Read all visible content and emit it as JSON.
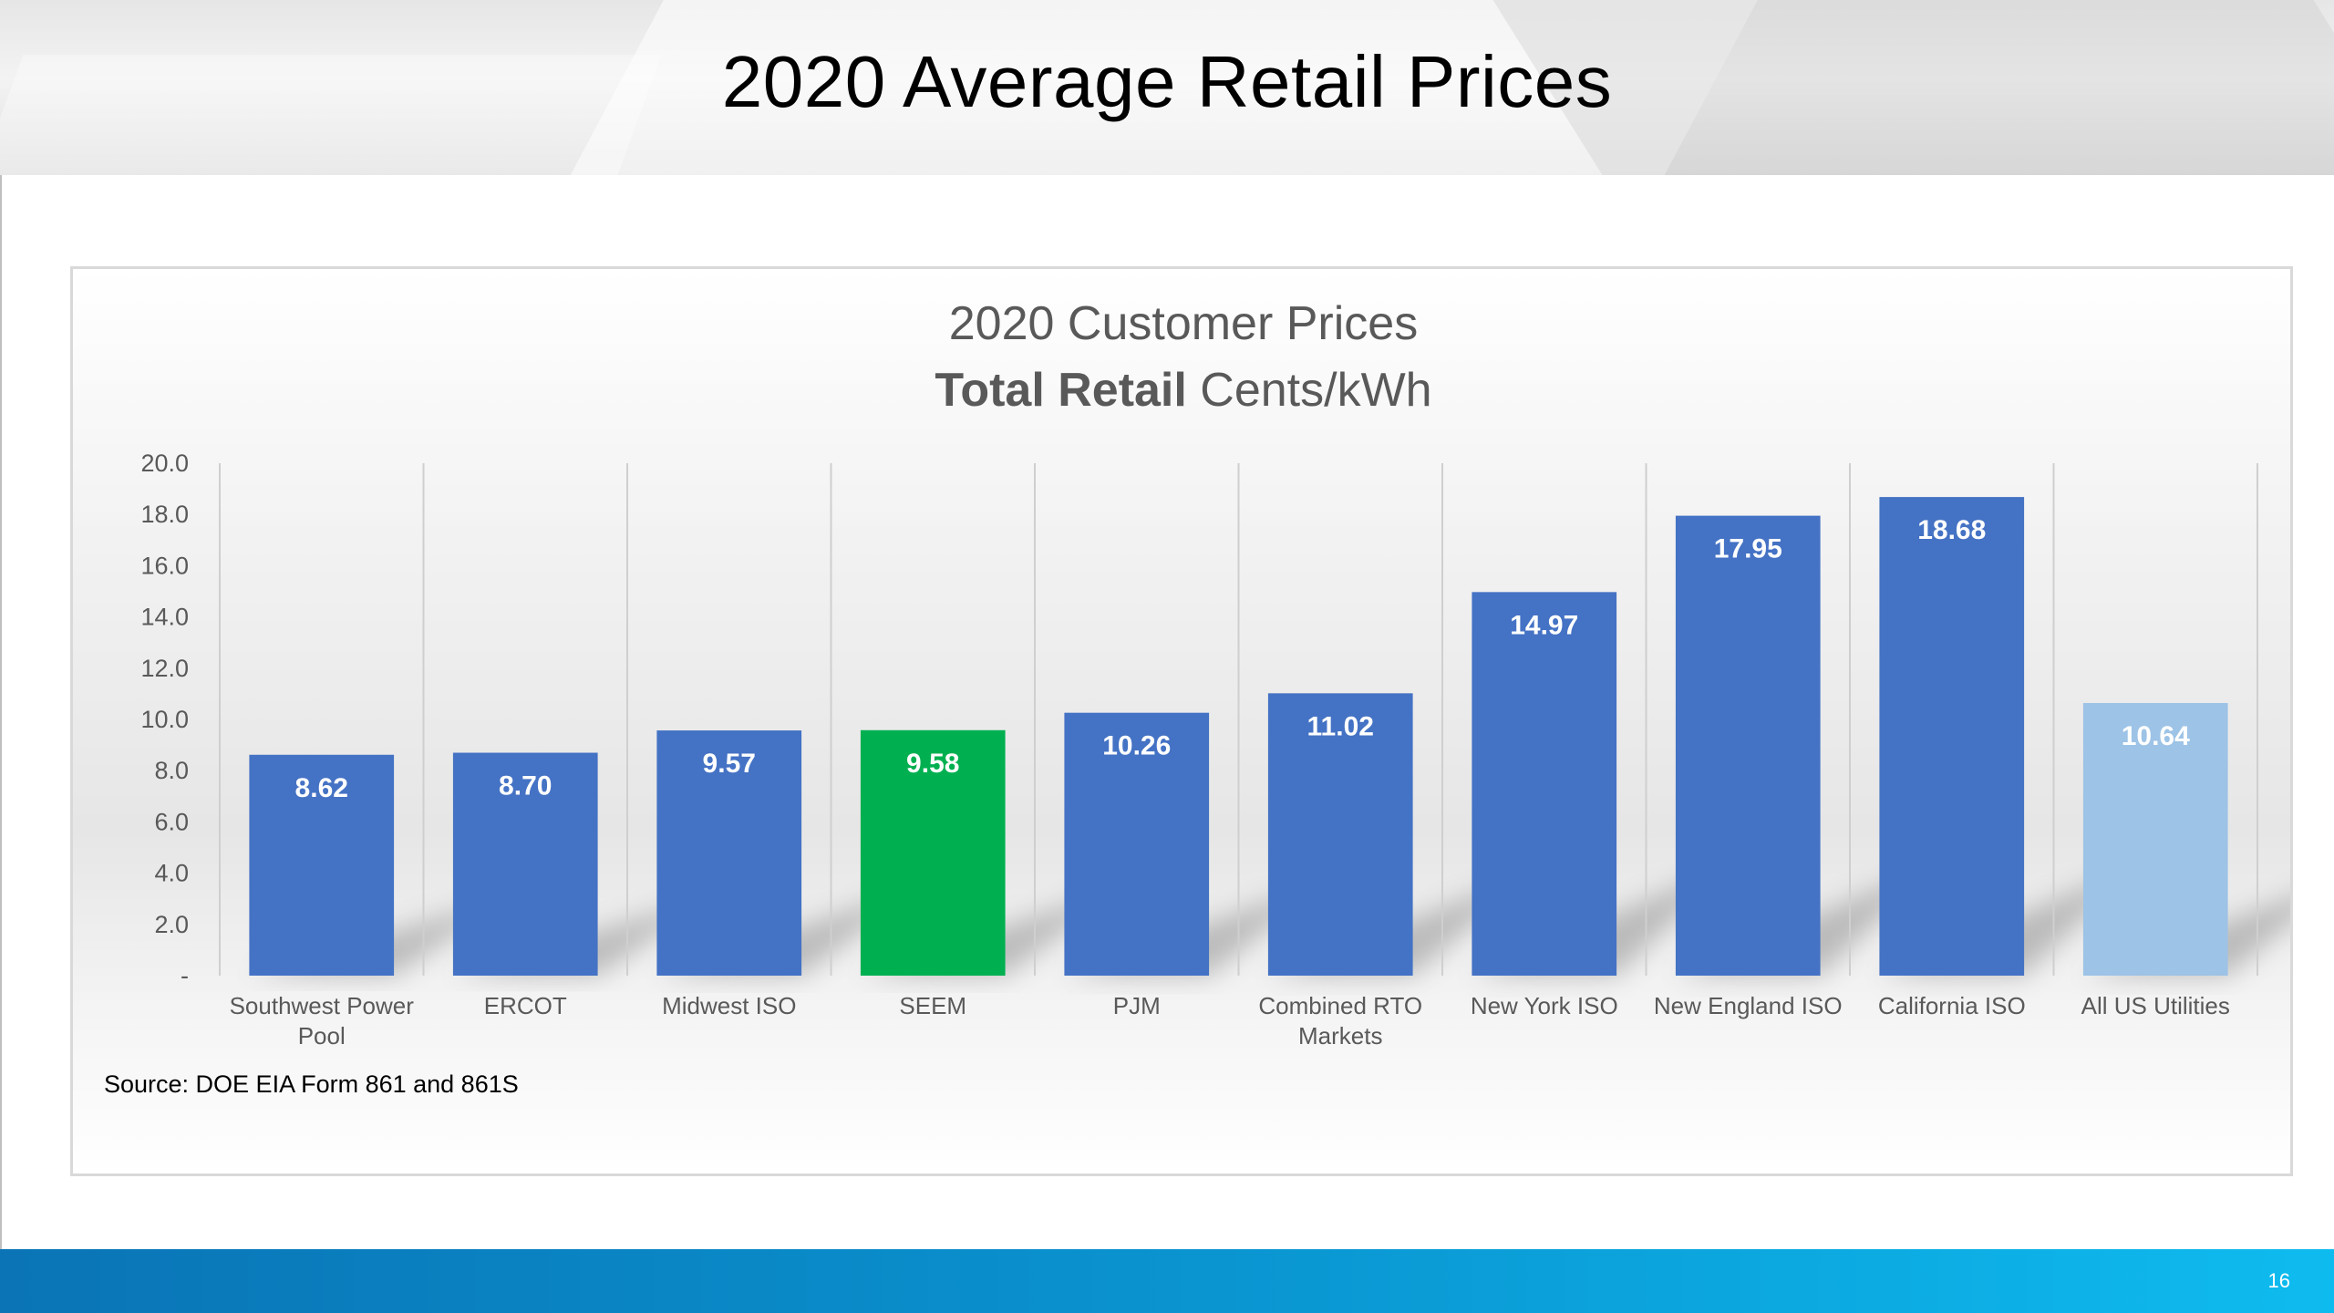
{
  "slide": {
    "title": "2020 Average Retail Prices",
    "page_number": "16"
  },
  "colors": {
    "bar_default": "#4472c4",
    "bar_highlight": "#00b050",
    "bar_reference": "#9dc3e6",
    "footer_start": "#0a74b6",
    "footer_end": "#0ebbef"
  },
  "chart_data": {
    "type": "bar",
    "title_line1": "2020 Customer Prices",
    "title_line2_bold": "Total Retail",
    "title_line2_rest": " Cents/kWh",
    "xlabel": "",
    "ylabel": "",
    "ylim": [
      0,
      20
    ],
    "yticks": [
      0,
      2,
      4,
      6,
      8,
      10,
      12,
      14,
      16,
      18,
      20
    ],
    "ytick_labels": [
      "-",
      "2.0",
      "4.0",
      "6.0",
      "8.0",
      "10.0",
      "12.0",
      "14.0",
      "16.0",
      "18.0",
      "20.0"
    ],
    "categories": [
      [
        "Southwest Power",
        "Pool"
      ],
      [
        "ERCOT"
      ],
      [
        "Midwest ISO"
      ],
      [
        "SEEM"
      ],
      [
        "PJM"
      ],
      [
        "Combined RTO",
        "Markets"
      ],
      [
        "New York ISO"
      ],
      [
        "New England ISO"
      ],
      [
        "California ISO"
      ],
      [
        "All US Utilities"
      ]
    ],
    "values": [
      8.62,
      8.7,
      9.57,
      9.58,
      10.26,
      11.02,
      14.97,
      17.95,
      18.68,
      10.64
    ],
    "value_labels": [
      "8.62",
      "8.70",
      "9.57",
      "9.58",
      "10.26",
      "11.02",
      "14.97",
      "17.95",
      "18.68",
      "10.64"
    ],
    "bar_roles": [
      "default",
      "default",
      "default",
      "highlight",
      "default",
      "default",
      "default",
      "default",
      "default",
      "reference"
    ],
    "grid": "vertical",
    "source_note": "Source: DOE EIA Form 861 and 861S"
  }
}
